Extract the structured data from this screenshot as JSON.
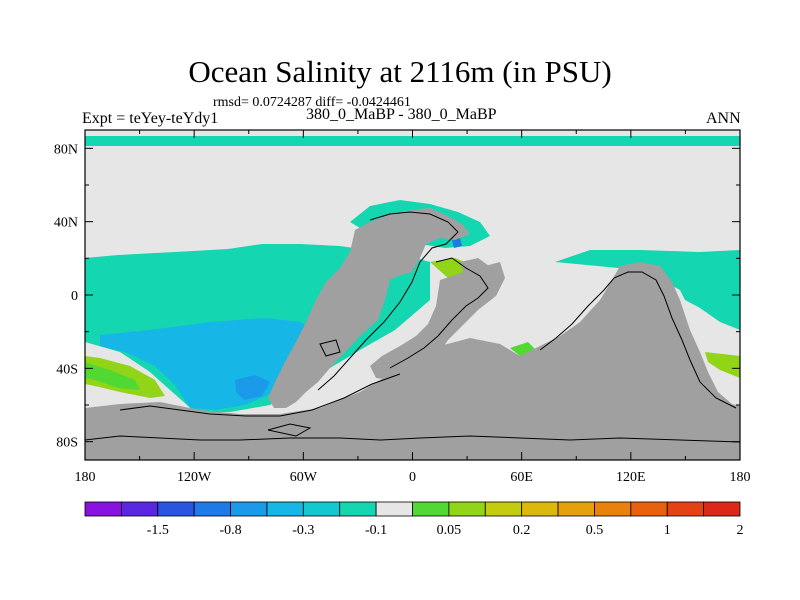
{
  "title": "Ocean Salinity at 2116m (in PSU)",
  "stats": "rmsd= 0.0724287 diff= -0.0424461",
  "experiment": "Expt = teYey-teYdy1",
  "center_label": "380_0_MaBP - 380_0_MaBP",
  "season": "ANN",
  "map": {
    "x_ticks": [
      "180",
      "120W",
      "60W",
      "0",
      "60E",
      "120E",
      "180"
    ],
    "y_ticks": [
      "80N",
      "40N",
      "0",
      "40S",
      "80S"
    ],
    "land_color": "#a0a0a0",
    "missing_color": "#e6e6e6"
  },
  "colorbar": {
    "colors": [
      "#8a12e0",
      "#5a28e0",
      "#2a55e0",
      "#1e7ae6",
      "#1a9ae8",
      "#16b6e6",
      "#14c8d2",
      "#14d6b0",
      "#e6e6e6",
      "#52d832",
      "#92d418",
      "#c4cc10",
      "#dcb80c",
      "#e6a00c",
      "#e8820c",
      "#e8620e",
      "#e44212",
      "#dc2816"
    ],
    "labels": [
      "-1.5",
      "-0.8",
      "-0.3",
      "-0.1",
      "0.05",
      "0.2",
      "0.5",
      "1",
      "2"
    ]
  }
}
